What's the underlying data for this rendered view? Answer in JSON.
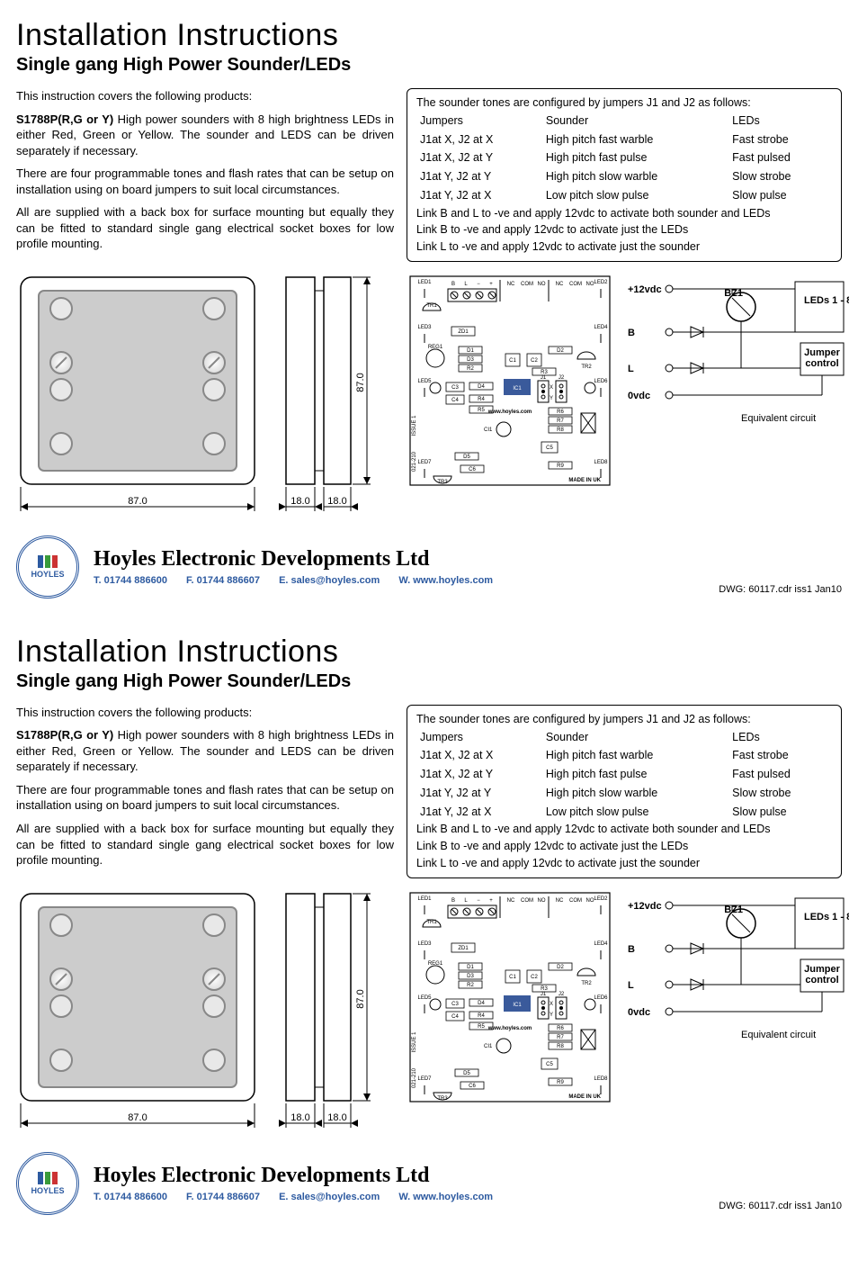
{
  "doc": {
    "title": "Installation Instructions",
    "subtitle": "Single gang High Power Sounder/LEDs",
    "intro_line": "This instruction covers the following products:",
    "product_code": "S1788P(R,G or Y)",
    "product_desc": " High power sounders with 8 high brightness LEDs in either Red, Green or Yellow.  The sounder and LEDS can be driven separately if necessary.",
    "para2": "There are four programmable tones and flash rates that can be setup on installation using on board jumpers  to suit local circumstances.",
    "para3": "All are supplied with a back box for surface mounting but equally they can be fitted to standard single gang electrical socket boxes for low profile mounting."
  },
  "config": {
    "header": "The sounder tones are configured by jumpers J1 and J2 as follows:",
    "col_jumpers": "Jumpers",
    "col_sounder": "Sounder",
    "col_leds": "LEDs",
    "rows": [
      {
        "j": "J1at X, J2 at X",
        "s": "High pitch fast warble",
        "l": "Fast strobe"
      },
      {
        "j": "J1at X, J2 at Y",
        "s": "High pitch fast pulse",
        "l": "Fast pulsed"
      },
      {
        "j": "J1at Y, J2 at Y",
        "s": "High pitch slow warble",
        "l": "Slow strobe"
      },
      {
        "j": "J1at Y, J2 at X",
        "s": "Low pitch slow pulse",
        "l": "Slow pulse"
      }
    ],
    "link1": "Link B and L to -ve and apply 12vdc to activate both sounder and LEDs",
    "link2": "Link B to -ve and apply 12vdc to activate just the  LEDs",
    "link3": "Link L to -ve and apply 12vdc to activate just the sounder"
  },
  "dims": {
    "front_w": "87.0",
    "side_d": "18.0",
    "side_d2": "18.0",
    "side_h": "87.0"
  },
  "pcb": {
    "led1": "LED1",
    "led2": "LED2",
    "led3": "LED3",
    "led4": "LED4",
    "led5": "LED5",
    "led6": "LED6",
    "led7": "LED7",
    "led8": "LED8",
    "term_b": "B",
    "term_l": "L",
    "term_minus": "−",
    "term_plus": "+",
    "nc": "NC",
    "com": "COM",
    "no": "NO",
    "tr1": "TR1",
    "tr2": "TR2",
    "reg1": "REG1",
    "zd1": "ZD1",
    "d1": "D1",
    "d2": "D2",
    "d3": "D3",
    "d4": "D4",
    "d5": "D5",
    "r2": "R2",
    "r3": "R3",
    "r4": "R4",
    "r5": "R5",
    "r6": "R6",
    "r7": "R7",
    "r8": "R8",
    "r9": "R9",
    "c1": "C1",
    "c2": "C2",
    "c3": "C3",
    "c4": "C4",
    "c5": "C5",
    "c6": "C6",
    "ic1": "IC1",
    "j1": "J1",
    "j2": "J2",
    "x": "X",
    "y": "Y",
    "ci1": "CI1",
    "trx": "TR3",
    "url": "www.hoyles.com",
    "issue": "ISSUE 1",
    "pn": "021-210",
    "made": "MADE IN UK"
  },
  "equiv": {
    "p12v": "+12vdc",
    "b": "B",
    "l": "L",
    "zv": "0vdc",
    "bz1": "BZ1",
    "leds": "LEDs 1 - 8",
    "jumper": "Jumper\ncontrol",
    "caption": "Equivalent circuit"
  },
  "footer": {
    "company": "Hoyles Electronic Developments Ltd",
    "tel": "T. 01744 886600",
    "fax": "F. 01744 886607",
    "email": "E. sales@hoyles.com",
    "web": "W. www.hoyles.com",
    "dwg": "DWG: 60117.cdr iss1 Jan10",
    "logo_text": "HOYLES"
  },
  "colors": {
    "blue": "#2d5aa0",
    "green": "#3a9b3a",
    "red": "#cc3333",
    "grey": "#cccccc",
    "darkgrey": "#888888",
    "black": "#000000",
    "white": "#ffffff",
    "icblue": "#3a5a9b"
  }
}
